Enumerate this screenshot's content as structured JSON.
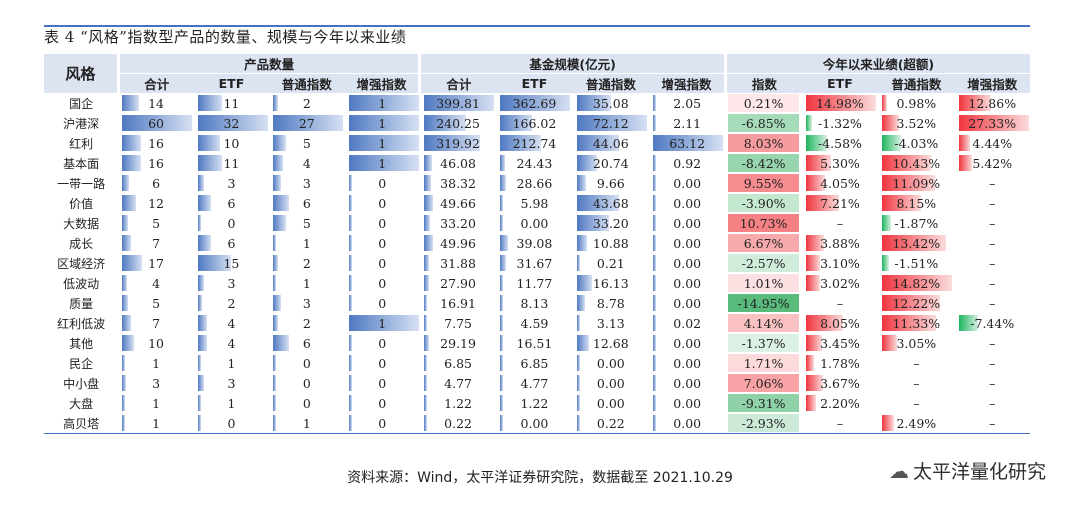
{
  "title": "表 4 “风格”指数型产品的数量、规模与今年以来业绩",
  "headers": {
    "style": "风格",
    "group_count": "产品数量",
    "group_scale": "基金规模(亿元)",
    "group_perf": "今年以来业绩(超额)",
    "cols": [
      "合计",
      "ETF",
      "普通指数",
      "增强指数",
      "合计",
      "ETF",
      "普通指数",
      "增强指数",
      "指数",
      "ETF",
      "普通指数",
      "增强指数"
    ]
  },
  "rows": [
    {
      "name": "国企",
      "cnt": [
        "14",
        "11",
        "2",
        "1"
      ],
      "scale": [
        "399.81",
        "362.69",
        "35.08",
        "2.05"
      ],
      "perf": [
        "0.21%",
        "14.98%",
        "0.98%",
        "12.86%"
      ]
    },
    {
      "name": "沪港深",
      "cnt": [
        "60",
        "32",
        "27",
        "1"
      ],
      "scale": [
        "240.25",
        "166.02",
        "72.12",
        "2.11"
      ],
      "perf": [
        "-6.85%",
        "-1.32%",
        "3.52%",
        "27.33%"
      ]
    },
    {
      "name": "红利",
      "cnt": [
        "16",
        "10",
        "5",
        "1"
      ],
      "scale": [
        "319.92",
        "212.74",
        "44.06",
        "63.12"
      ],
      "perf": [
        "8.03%",
        "-4.58%",
        "-4.03%",
        "4.44%"
      ]
    },
    {
      "name": "基本面",
      "cnt": [
        "16",
        "11",
        "4",
        "1"
      ],
      "scale": [
        "46.08",
        "24.43",
        "20.74",
        "0.92"
      ],
      "perf": [
        "-8.42%",
        "5.30%",
        "10.43%",
        "5.42%"
      ]
    },
    {
      "name": "一带一路",
      "cnt": [
        "6",
        "3",
        "3",
        "0"
      ],
      "scale": [
        "38.32",
        "28.66",
        "9.66",
        "0.00"
      ],
      "perf": [
        "9.55%",
        "4.05%",
        "11.09%",
        "–"
      ]
    },
    {
      "name": "价值",
      "cnt": [
        "12",
        "6",
        "6",
        "0"
      ],
      "scale": [
        "49.66",
        "5.98",
        "43.68",
        "0.00"
      ],
      "perf": [
        "-3.90%",
        "7.21%",
        "8.15%",
        "–"
      ]
    },
    {
      "name": "大数据",
      "cnt": [
        "5",
        "0",
        "5",
        "0"
      ],
      "scale": [
        "33.20",
        "0.00",
        "33.20",
        "0.00"
      ],
      "perf": [
        "10.73%",
        "–",
        "-1.87%",
        "–"
      ]
    },
    {
      "name": "成长",
      "cnt": [
        "7",
        "6",
        "1",
        "0"
      ],
      "scale": [
        "49.96",
        "39.08",
        "10.88",
        "0.00"
      ],
      "perf": [
        "6.67%",
        "3.88%",
        "13.42%",
        "–"
      ]
    },
    {
      "name": "区域经济",
      "cnt": [
        "17",
        "15",
        "2",
        "0"
      ],
      "scale": [
        "31.88",
        "31.67",
        "0.21",
        "0.00"
      ],
      "perf": [
        "-2.57%",
        "3.10%",
        "-1.51%",
        "–"
      ]
    },
    {
      "name": "低波动",
      "cnt": [
        "4",
        "3",
        "1",
        "0"
      ],
      "scale": [
        "27.90",
        "11.77",
        "16.13",
        "0.00"
      ],
      "perf": [
        "1.01%",
        "3.02%",
        "14.82%",
        "–"
      ]
    },
    {
      "name": "质量",
      "cnt": [
        "5",
        "2",
        "3",
        "0"
      ],
      "scale": [
        "16.91",
        "8.13",
        "8.78",
        "0.00"
      ],
      "perf": [
        "-14.95%",
        "–",
        "12.22%",
        "–"
      ]
    },
    {
      "name": "红利低波",
      "cnt": [
        "7",
        "4",
        "2",
        "1"
      ],
      "scale": [
        "7.75",
        "4.59",
        "3.13",
        "0.02"
      ],
      "perf": [
        "4.14%",
        "8.05%",
        "11.33%",
        "-7.44%"
      ]
    },
    {
      "name": "其他",
      "cnt": [
        "10",
        "4",
        "6",
        "0"
      ],
      "scale": [
        "29.19",
        "16.51",
        "12.68",
        "0.00"
      ],
      "perf": [
        "-1.37%",
        "3.45%",
        "3.05%",
        "–"
      ]
    },
    {
      "name": "民企",
      "cnt": [
        "1",
        "1",
        "0",
        "0"
      ],
      "scale": [
        "6.85",
        "6.85",
        "0.00",
        "0.00"
      ],
      "perf": [
        "1.71%",
        "1.78%",
        "–",
        "–"
      ]
    },
    {
      "name": "中小盘",
      "cnt": [
        "3",
        "3",
        "0",
        "0"
      ],
      "scale": [
        "4.77",
        "4.77",
        "0.00",
        "0.00"
      ],
      "perf": [
        "7.06%",
        "3.67%",
        "–",
        "–"
      ]
    },
    {
      "name": "大盘",
      "cnt": [
        "1",
        "1",
        "0",
        "0"
      ],
      "scale": [
        "1.22",
        "1.22",
        "0.00",
        "0.00"
      ],
      "perf": [
        "-9.31%",
        "2.20%",
        "–",
        "–"
      ]
    },
    {
      "name": "高贝塔",
      "cnt": [
        "1",
        "0",
        "1",
        "0"
      ],
      "scale": [
        "0.22",
        "0.00",
        "0.22",
        "0.00"
      ],
      "perf": [
        "-2.93%",
        "–",
        "2.49%",
        "–"
      ]
    }
  ],
  "colors": {
    "bar_blue": "#4f79c2",
    "pos_red": "#f0353f",
    "neg_green": "#1eb55e",
    "header_bg": "#dce4f1"
  },
  "source": "资料来源：Wind，太平洋证券研究院，数据截至 2021.10.29",
  "watermark": {
    "icon": "wechat-icon",
    "text": "太平洋量化研究"
  }
}
